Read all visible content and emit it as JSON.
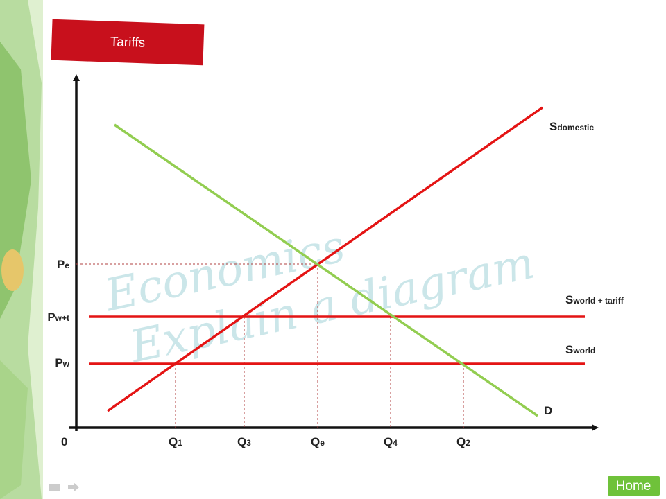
{
  "title": "Tariffs",
  "watermark": [
    "Economics",
    "Explain a diagram"
  ],
  "curves": {
    "supply_domestic": {
      "main": "S",
      "sub": "domestic"
    },
    "supply_world_tariff": {
      "main": "S",
      "sub": "world + tariff"
    },
    "supply_world": {
      "main": "S",
      "sub": "world"
    },
    "demand": "D"
  },
  "price_labels": [
    {
      "main": "P",
      "sub": "e"
    },
    {
      "main": "P",
      "sub": "w+t"
    },
    {
      "main": "P",
      "sub": "w"
    }
  ],
  "origin": "0",
  "quantity_labels": [
    {
      "main": "Q",
      "sub": "1"
    },
    {
      "main": "Q",
      "sub": "3"
    },
    {
      "main": "Q",
      "sub": "e"
    },
    {
      "main": "Q",
      "sub": "4"
    },
    {
      "main": "Q",
      "sub": "2"
    }
  ],
  "button": "Home"
}
